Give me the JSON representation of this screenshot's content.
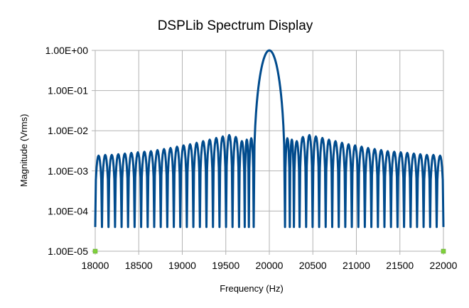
{
  "chart_data": {
    "type": "line",
    "title": "DSPLib Spectrum Display",
    "xlabel": "Frequency (Hz)",
    "ylabel": "Magnitude (Vrms)",
    "xlim": [
      18000,
      22000
    ],
    "ylim": [
      1e-05,
      1
    ],
    "yscale": "log",
    "grid": true,
    "legend": "none",
    "x_tick_labels": [
      "18000",
      "18500",
      "19000",
      "19500",
      "20000",
      "20500",
      "21000",
      "21500",
      "22000"
    ],
    "y_tick_labels": [
      "1.00E-05",
      "1.00E-04",
      "1.00E-03",
      "1.00E-02",
      "1.00E-01",
      "1.00E+00"
    ],
    "series": [
      {
        "color": "#004b8d",
        "peak": {
          "x": 20000,
          "y": 1.0
        },
        "main_lobe_x_range": [
          19820,
          20180
        ],
        "side_lobe_peaks_left": [
          {
            "x": 18040,
            "y": 0.0024
          },
          {
            "x": 18115,
            "y": 0.0025
          },
          {
            "x": 18190,
            "y": 0.0025
          },
          {
            "x": 18265,
            "y": 0.0026
          },
          {
            "x": 18340,
            "y": 0.0027
          },
          {
            "x": 18415,
            "y": 0.0028
          },
          {
            "x": 18490,
            "y": 0.0029
          },
          {
            "x": 18565,
            "y": 0.003
          },
          {
            "x": 18640,
            "y": 0.0031
          },
          {
            "x": 18715,
            "y": 0.0033
          },
          {
            "x": 18790,
            "y": 0.0035
          },
          {
            "x": 18865,
            "y": 0.0037
          },
          {
            "x": 18940,
            "y": 0.004
          },
          {
            "x": 19015,
            "y": 0.0043
          },
          {
            "x": 19090,
            "y": 0.0046
          },
          {
            "x": 19165,
            "y": 0.005
          },
          {
            "x": 19240,
            "y": 0.0055
          },
          {
            "x": 19315,
            "y": 0.006
          },
          {
            "x": 19390,
            "y": 0.0066
          },
          {
            "x": 19465,
            "y": 0.0072
          },
          {
            "x": 19540,
            "y": 0.0078
          },
          {
            "x": 19615,
            "y": 0.007
          },
          {
            "x": 19690,
            "y": 0.0055
          },
          {
            "x": 19745,
            "y": 0.006
          },
          {
            "x": 19785,
            "y": 0.0065
          }
        ],
        "side_lobe_peaks_right": [
          {
            "x": 20215,
            "y": 0.0065
          },
          {
            "x": 20255,
            "y": 0.006
          },
          {
            "x": 20310,
            "y": 0.0055
          },
          {
            "x": 20385,
            "y": 0.007
          },
          {
            "x": 20460,
            "y": 0.0078
          },
          {
            "x": 20535,
            "y": 0.0072
          },
          {
            "x": 20610,
            "y": 0.0066
          },
          {
            "x": 20685,
            "y": 0.006
          },
          {
            "x": 20760,
            "y": 0.0055
          },
          {
            "x": 20835,
            "y": 0.005
          },
          {
            "x": 20910,
            "y": 0.0046
          },
          {
            "x": 20985,
            "y": 0.0043
          },
          {
            "x": 21060,
            "y": 0.004
          },
          {
            "x": 21135,
            "y": 0.0037
          },
          {
            "x": 21210,
            "y": 0.0035
          },
          {
            "x": 21285,
            "y": 0.0033
          },
          {
            "x": 21360,
            "y": 0.0031
          },
          {
            "x": 21435,
            "y": 0.003
          },
          {
            "x": 21510,
            "y": 0.0029
          },
          {
            "x": 21585,
            "y": 0.0028
          },
          {
            "x": 21660,
            "y": 0.0027
          },
          {
            "x": 21735,
            "y": 0.0026
          },
          {
            "x": 21810,
            "y": 0.0025
          },
          {
            "x": 21885,
            "y": 0.0025
          },
          {
            "x": 21960,
            "y": 0.0024
          }
        ],
        "null_floor": 4e-05,
        "endpoint_markers": [
          {
            "x": 18000,
            "y": 1e-05
          },
          {
            "x": 22000,
            "y": 1e-05
          }
        ],
        "marker_color": "#7fd13b"
      }
    ]
  }
}
